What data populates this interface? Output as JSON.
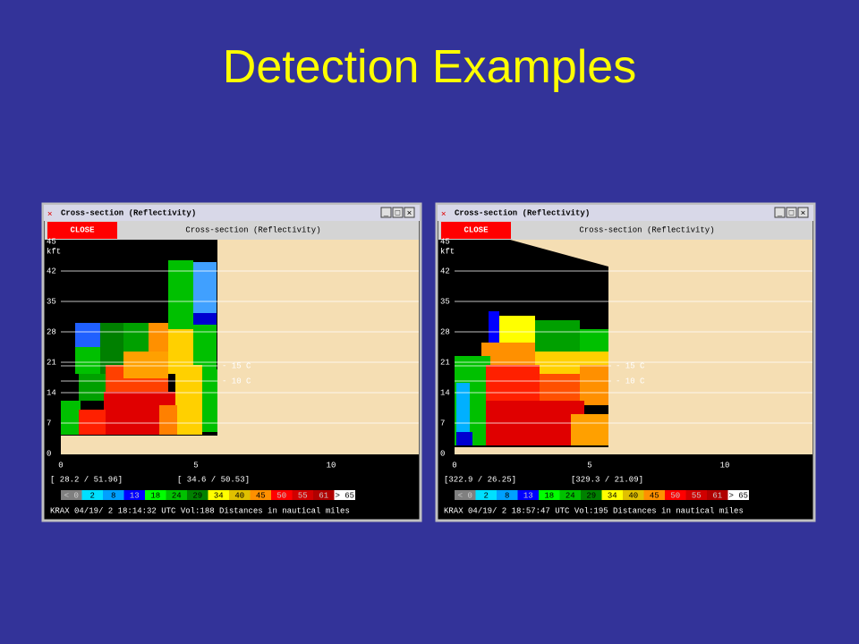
{
  "title": "Detection Examples",
  "windows": [
    {
      "window_title": "Cross-section (Reflectivity)",
      "close": "CLOSE",
      "header": "Cross-section (Reflectivity)",
      "y_labels": [
        "45",
        "42",
        "35",
        "28",
        "21",
        "14",
        "7",
        "0"
      ],
      "y_unit": "kft",
      "temps": [
        "- 15 C",
        "- 10 C"
      ],
      "x_labels": [
        "0",
        "5",
        "10"
      ],
      "coords": [
        "[ 28.2 /  51.96]",
        "[ 34.6 /  50.53]"
      ],
      "legend": [
        "< 0",
        "2",
        "8",
        "13",
        "18",
        "24",
        "29",
        "34",
        "40",
        "45",
        "50",
        "55",
        "61",
        "> 65"
      ],
      "footer": "KRAX 04/19/ 2 18:14:32 UTC Vol:188 Distances in nautical miles"
    },
    {
      "window_title": "Cross-section (Reflectivity)",
      "close": "CLOSE",
      "header": "Cross-section (Reflectivity)",
      "y_labels": [
        "45",
        "42",
        "35",
        "28",
        "21",
        "14",
        "7",
        "0"
      ],
      "y_unit": "kft",
      "temps": [
        "- 15 C",
        "- 10 C"
      ],
      "x_labels": [
        "0",
        "5",
        "10"
      ],
      "coords": [
        "[322.9 /  26.25]",
        "[329.3 /  21.09]"
      ],
      "legend": [
        "< 0",
        "2",
        "8",
        "13",
        "18",
        "24",
        "29",
        "34",
        "40",
        "45",
        "50",
        "55",
        "61",
        "> 65"
      ],
      "footer": "KRAX 04/19/ 2 18:57:47 UTC Vol:195 Distances in nautical miles"
    }
  ]
}
